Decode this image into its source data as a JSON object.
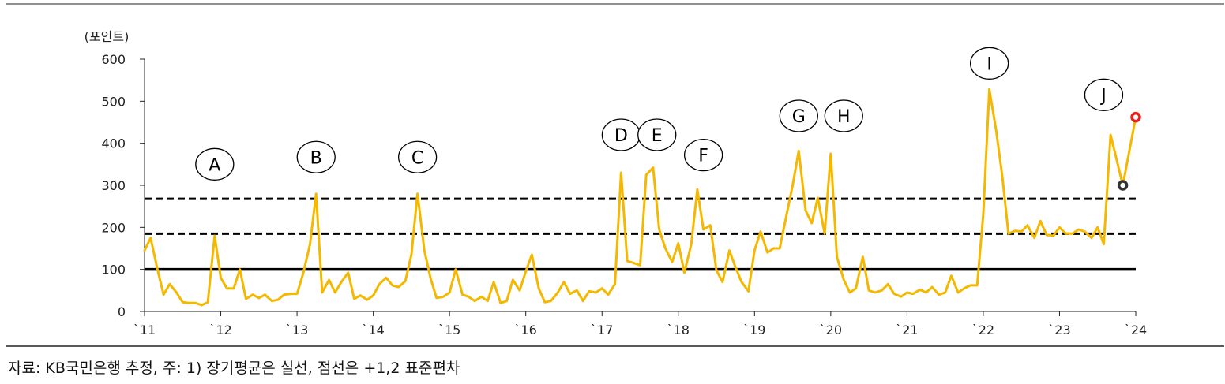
{
  "chart_data": {
    "type": "line",
    "unit_label": "(포인트)",
    "ylim": [
      0,
      600
    ],
    "yticks": [
      0,
      100,
      200,
      300,
      400,
      500,
      600
    ],
    "xlim": [
      2011,
      2024
    ],
    "xticks": [
      {
        "x": 2011,
        "label": "`11"
      },
      {
        "x": 2012,
        "label": "`12"
      },
      {
        "x": 2013,
        "label": "`13"
      },
      {
        "x": 2014,
        "label": "`14"
      },
      {
        "x": 2015,
        "label": "`15"
      },
      {
        "x": 2016,
        "label": "`16"
      },
      {
        "x": 2017,
        "label": "`17"
      },
      {
        "x": 2018,
        "label": "`18"
      },
      {
        "x": 2019,
        "label": "`19"
      },
      {
        "x": 2020,
        "label": "`20"
      },
      {
        "x": 2021,
        "label": "`21"
      },
      {
        "x": 2022,
        "label": "`22"
      },
      {
        "x": 2023,
        "label": "`23"
      },
      {
        "x": 2024,
        "label": "`24"
      }
    ],
    "series": [
      {
        "color": "#F5B800",
        "points": [
          [
            2011.0,
            145
          ],
          [
            2011.08,
            175
          ],
          [
            2011.17,
            100
          ],
          [
            2011.25,
            40
          ],
          [
            2011.33,
            65
          ],
          [
            2011.42,
            45
          ],
          [
            2011.5,
            22
          ],
          [
            2011.58,
            20
          ],
          [
            2011.67,
            20
          ],
          [
            2011.75,
            15
          ],
          [
            2011.83,
            22
          ],
          [
            2011.92,
            180
          ],
          [
            2012.0,
            80
          ],
          [
            2012.08,
            55
          ],
          [
            2012.17,
            55
          ],
          [
            2012.25,
            100
          ],
          [
            2012.33,
            30
          ],
          [
            2012.42,
            40
          ],
          [
            2012.5,
            32
          ],
          [
            2012.58,
            40
          ],
          [
            2012.67,
            25
          ],
          [
            2012.75,
            28
          ],
          [
            2012.83,
            40
          ],
          [
            2012.92,
            42
          ],
          [
            2013.0,
            42
          ],
          [
            2013.08,
            90
          ],
          [
            2013.17,
            160
          ],
          [
            2013.25,
            280
          ],
          [
            2013.33,
            45
          ],
          [
            2013.42,
            75
          ],
          [
            2013.5,
            45
          ],
          [
            2013.58,
            70
          ],
          [
            2013.67,
            92
          ],
          [
            2013.75,
            30
          ],
          [
            2013.83,
            38
          ],
          [
            2013.92,
            28
          ],
          [
            2014.0,
            38
          ],
          [
            2014.08,
            65
          ],
          [
            2014.17,
            80
          ],
          [
            2014.25,
            62
          ],
          [
            2014.33,
            58
          ],
          [
            2014.42,
            72
          ],
          [
            2014.5,
            135
          ],
          [
            2014.58,
            280
          ],
          [
            2014.67,
            145
          ],
          [
            2014.75,
            80
          ],
          [
            2014.83,
            32
          ],
          [
            2014.92,
            35
          ],
          [
            2015.0,
            45
          ],
          [
            2015.08,
            100
          ],
          [
            2015.17,
            40
          ],
          [
            2015.25,
            35
          ],
          [
            2015.33,
            25
          ],
          [
            2015.42,
            35
          ],
          [
            2015.5,
            25
          ],
          [
            2015.58,
            70
          ],
          [
            2015.67,
            20
          ],
          [
            2015.75,
            25
          ],
          [
            2015.83,
            75
          ],
          [
            2015.92,
            50
          ],
          [
            2016.0,
            95
          ],
          [
            2016.08,
            135
          ],
          [
            2016.17,
            55
          ],
          [
            2016.25,
            22
          ],
          [
            2016.33,
            25
          ],
          [
            2016.42,
            45
          ],
          [
            2016.5,
            70
          ],
          [
            2016.58,
            42
          ],
          [
            2016.67,
            50
          ],
          [
            2016.75,
            25
          ],
          [
            2016.83,
            48
          ],
          [
            2016.92,
            45
          ],
          [
            2017.0,
            55
          ],
          [
            2017.08,
            40
          ],
          [
            2017.17,
            65
          ],
          [
            2017.25,
            330
          ],
          [
            2017.33,
            120
          ],
          [
            2017.42,
            115
          ],
          [
            2017.5,
            110
          ],
          [
            2017.58,
            325
          ],
          [
            2017.67,
            342
          ],
          [
            2017.75,
            195
          ],
          [
            2017.83,
            150
          ],
          [
            2017.92,
            118
          ],
          [
            2018.0,
            162
          ],
          [
            2018.08,
            92
          ],
          [
            2018.17,
            160
          ],
          [
            2018.25,
            290
          ],
          [
            2018.33,
            195
          ],
          [
            2018.42,
            205
          ],
          [
            2018.5,
            98
          ],
          [
            2018.58,
            70
          ],
          [
            2018.67,
            145
          ],
          [
            2018.75,
            105
          ],
          [
            2018.83,
            70
          ],
          [
            2018.92,
            48
          ],
          [
            2019.0,
            145
          ],
          [
            2019.08,
            190
          ],
          [
            2019.17,
            140
          ],
          [
            2019.25,
            150
          ],
          [
            2019.33,
            150
          ],
          [
            2019.42,
            230
          ],
          [
            2019.5,
            300
          ],
          [
            2019.58,
            382
          ],
          [
            2019.67,
            240
          ],
          [
            2019.75,
            210
          ],
          [
            2019.83,
            270
          ],
          [
            2019.92,
            185
          ],
          [
            2020.0,
            375
          ],
          [
            2020.08,
            130
          ],
          [
            2020.17,
            75
          ],
          [
            2020.25,
            45
          ],
          [
            2020.33,
            55
          ],
          [
            2020.42,
            130
          ],
          [
            2020.5,
            50
          ],
          [
            2020.58,
            45
          ],
          [
            2020.67,
            50
          ],
          [
            2020.75,
            65
          ],
          [
            2020.83,
            42
          ],
          [
            2020.92,
            35
          ],
          [
            2021.0,
            45
          ],
          [
            2021.08,
            42
          ],
          [
            2021.17,
            52
          ],
          [
            2021.25,
            45
          ],
          [
            2021.33,
            58
          ],
          [
            2021.42,
            40
          ],
          [
            2021.5,
            45
          ],
          [
            2021.58,
            85
          ],
          [
            2021.67,
            45
          ],
          [
            2021.75,
            55
          ],
          [
            2021.83,
            62
          ],
          [
            2021.92,
            62
          ],
          [
            2022.0,
            230
          ],
          [
            2022.08,
            528
          ],
          [
            2022.17,
            430
          ],
          [
            2022.25,
            320
          ],
          [
            2022.33,
            185
          ],
          [
            2022.42,
            192
          ],
          [
            2022.5,
            190
          ],
          [
            2022.58,
            205
          ],
          [
            2022.67,
            175
          ],
          [
            2022.75,
            215
          ],
          [
            2022.83,
            182
          ],
          [
            2022.92,
            180
          ],
          [
            2023.0,
            200
          ],
          [
            2023.08,
            185
          ],
          [
            2023.17,
            185
          ],
          [
            2023.25,
            195
          ],
          [
            2023.33,
            190
          ],
          [
            2023.42,
            175
          ],
          [
            2023.5,
            200
          ],
          [
            2023.58,
            160
          ],
          [
            2023.67,
            420
          ],
          [
            2023.75,
            360
          ],
          [
            2023.83,
            300
          ],
          [
            2024.0,
            462
          ]
        ]
      }
    ],
    "reference_lines": [
      {
        "style": "solid",
        "value": 100
      },
      {
        "style": "dashed",
        "value": 185
      },
      {
        "style": "dashed",
        "value": 268
      }
    ],
    "highlight_points": [
      {
        "x": 2023.83,
        "y": 300,
        "color": "#333333"
      },
      {
        "x": 2024.0,
        "y": 462,
        "color": "#E8211A"
      }
    ],
    "annotations": [
      {
        "label": "A",
        "x": 2011.92,
        "y": 350
      },
      {
        "label": "B",
        "x": 2013.25,
        "y": 367
      },
      {
        "label": "C",
        "x": 2014.58,
        "y": 367
      },
      {
        "label": "D",
        "x": 2017.25,
        "y": 420
      },
      {
        "label": "E",
        "x": 2017.72,
        "y": 420
      },
      {
        "label": "F",
        "x": 2018.33,
        "y": 372
      },
      {
        "label": "G",
        "x": 2019.58,
        "y": 465
      },
      {
        "label": "H",
        "x": 2020.17,
        "y": 465
      },
      {
        "label": "I",
        "x": 2022.08,
        "y": 590
      },
      {
        "label": "J",
        "x": 2023.58,
        "y": 515
      }
    ]
  },
  "source_note": "자료: KB국민은행 추정, 주: 1) 장기평균은 실선, 점선은 +1,2 표준편차"
}
